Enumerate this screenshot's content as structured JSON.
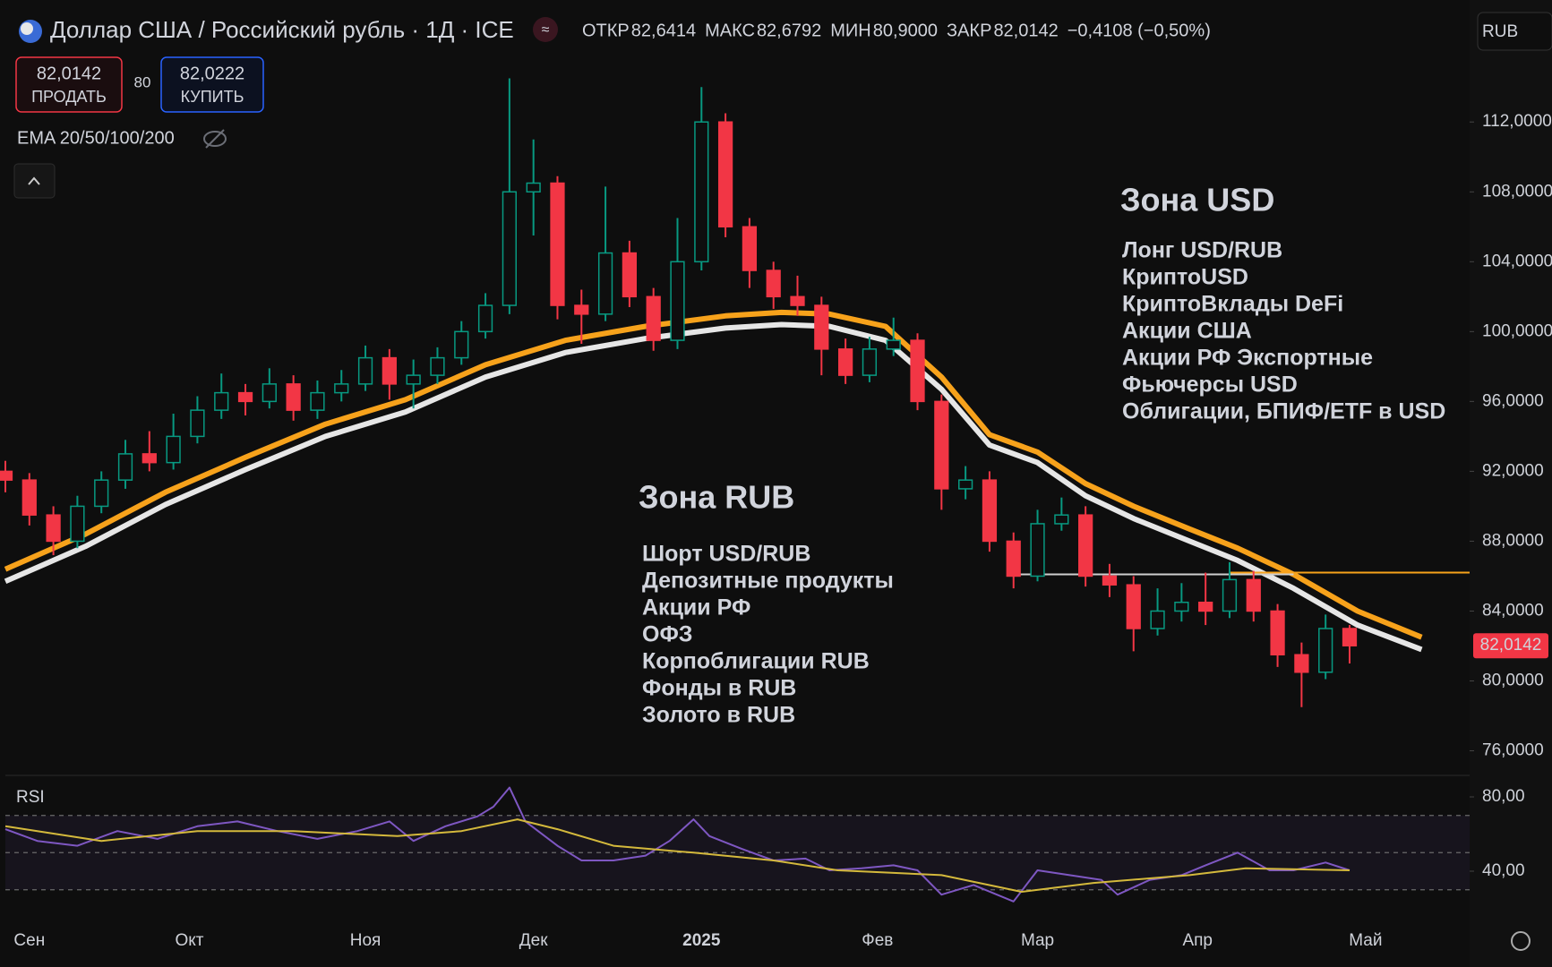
{
  "header": {
    "title": "Доллар США / Российский рубль · 1Д · ICE",
    "ohlc": [
      {
        "label": "ОТКР",
        "value": "82,6414"
      },
      {
        "label": "МАКС",
        "value": "82,6792"
      },
      {
        "label": "МИН",
        "value": "80,9000"
      },
      {
        "label": "ЗАКР",
        "value": "82,0142"
      }
    ],
    "change": "−0,4108 (−0,50%)",
    "sell": {
      "price": "82,0142",
      "label": "ПРОДАТЬ"
    },
    "spread": "80",
    "buy": {
      "price": "82,0222",
      "label": "КУПИТЬ"
    },
    "indicator": "EMA 20/50/100/200",
    "currency": "RUB"
  },
  "chart_data": [
    {
      "type": "candlestick",
      "x": [
        0,
        3,
        6,
        9,
        12,
        15,
        18,
        21,
        24,
        27,
        30,
        33,
        36,
        39,
        42,
        45,
        48,
        51,
        54,
        57,
        60,
        63,
        66,
        69,
        72,
        75,
        78,
        81,
        84,
        87,
        90,
        93,
        96,
        99,
        102,
        105,
        108,
        111,
        114,
        117,
        120,
        123,
        126,
        129,
        132,
        135,
        138,
        141,
        144,
        147,
        150,
        153,
        156,
        159,
        162,
        165,
        168
      ],
      "open": [
        92.0,
        91.5,
        89.5,
        88.0,
        90.0,
        91.5,
        93.0,
        92.5,
        94.0,
        95.5,
        96.5,
        96.0,
        97.0,
        95.5,
        96.5,
        97.0,
        98.5,
        97.0,
        97.5,
        98.5,
        100.0,
        101.5,
        108.0,
        108.5,
        101.5,
        101.0,
        104.5,
        102.0,
        99.5,
        104.0,
        112.0,
        106.0,
        103.5,
        102.0,
        101.5,
        99.0,
        97.5,
        99.0,
        99.5,
        96.0,
        91.0,
        91.5,
        88.0,
        86.0,
        89.0,
        89.5,
        86.0,
        85.5,
        83.0,
        84.0,
        84.5,
        84.0,
        85.8,
        84.0,
        81.5,
        80.5,
        83.0
      ],
      "high": [
        92.6,
        91.9,
        90.0,
        90.6,
        92.0,
        93.8,
        94.3,
        95.3,
        96.3,
        97.6,
        97.0,
        97.9,
        97.5,
        97.2,
        97.8,
        99.2,
        99.0,
        98.4,
        99.1,
        100.6,
        102.2,
        114.5,
        111.0,
        108.9,
        102.4,
        108.3,
        105.2,
        102.5,
        106.5,
        114.0,
        112.5,
        106.5,
        104.0,
        103.2,
        102.0,
        99.6,
        99.7,
        100.8,
        99.9,
        96.4,
        92.3,
        92.0,
        88.5,
        89.8,
        90.5,
        90.0,
        86.7,
        86.0,
        85.3,
        85.6,
        86.2,
        86.8,
        86.3,
        84.4,
        82.2,
        83.8,
        83.2
      ],
      "low": [
        90.8,
        88.9,
        87.2,
        87.6,
        89.6,
        91.0,
        92.0,
        92.1,
        93.6,
        95.0,
        95.2,
        95.6,
        94.9,
        95.0,
        96.0,
        96.6,
        96.1,
        95.6,
        97.0,
        98.1,
        99.6,
        101.0,
        105.5,
        100.7,
        99.3,
        100.6,
        101.4,
        98.9,
        99.0,
        103.5,
        105.4,
        102.5,
        101.3,
        100.9,
        97.5,
        97.0,
        97.1,
        98.6,
        95.5,
        89.8,
        90.4,
        87.4,
        85.3,
        85.7,
        88.6,
        85.4,
        84.8,
        81.7,
        82.6,
        83.4,
        83.2,
        83.6,
        83.4,
        80.8,
        78.5,
        80.1,
        81.0
      ],
      "close": [
        91.5,
        89.5,
        88.0,
        90.0,
        91.5,
        93.0,
        92.5,
        94.0,
        95.5,
        96.5,
        96.0,
        97.0,
        95.5,
        96.5,
        97.0,
        98.5,
        97.0,
        97.5,
        98.5,
        100.0,
        101.5,
        108.0,
        108.5,
        101.5,
        101.0,
        104.5,
        102.0,
        99.5,
        104.0,
        112.0,
        106.0,
        103.5,
        102.0,
        101.5,
        99.0,
        97.5,
        99.0,
        99.5,
        96.0,
        91.0,
        91.5,
        88.0,
        86.0,
        89.0,
        89.5,
        86.0,
        85.5,
        83.0,
        84.0,
        84.5,
        84.0,
        85.8,
        84.0,
        81.5,
        80.5,
        83.0,
        82.0142
      ],
      "up_color": "#089981",
      "down_color": "#f23645",
      "lines": [
        {
          "color": "#f7a21b",
          "x": [
            0,
            10,
            20,
            30,
            40,
            50,
            60,
            70,
            80,
            90,
            97,
            103,
            110,
            117,
            123,
            129,
            135,
            141,
            148,
            154,
            161,
            169,
            177
          ],
          "values": [
            86.4,
            88.4,
            90.8,
            92.8,
            94.7,
            96.1,
            98.1,
            99.5,
            100.3,
            100.9,
            101.1,
            101.0,
            100.3,
            97.4,
            94.1,
            93.1,
            91.3,
            90.0,
            88.7,
            87.6,
            86.1,
            84.0,
            82.5
          ]
        },
        {
          "color": "#e6e6e6",
          "x": [
            0,
            10,
            20,
            30,
            40,
            50,
            60,
            70,
            80,
            90,
            97,
            103,
            110,
            117,
            123,
            129,
            135,
            141,
            148,
            154,
            161,
            169,
            177
          ],
          "values": [
            85.7,
            87.7,
            90.1,
            92.1,
            94.0,
            95.4,
            97.4,
            98.8,
            99.6,
            100.2,
            100.4,
            100.3,
            99.5,
            96.7,
            93.5,
            92.5,
            90.6,
            89.3,
            88.0,
            86.9,
            85.3,
            83.2,
            81.8
          ]
        }
      ],
      "levels": [
        {
          "value": 86.2,
          "x": [
            153,
            183
          ],
          "color": "#f7a21b"
        },
        {
          "value": 86.1,
          "x": [
            126,
            161
          ],
          "color": "#cfcfcf"
        }
      ],
      "price_tag": "82,0142",
      "xlim": [
        0,
        183
      ],
      "ylim": [
        74.9,
        115.6
      ],
      "yticks": [
        {
          "value": 76,
          "label": "76,0000"
        },
        {
          "value": 80,
          "label": "80,0000"
        },
        {
          "value": 84,
          "label": "84,0000"
        },
        {
          "value": 88,
          "label": "88,0000"
        },
        {
          "value": 92,
          "label": "92,0000"
        },
        {
          "value": 96,
          "label": "96,0000"
        },
        {
          "value": 100,
          "label": "100,0000"
        },
        {
          "value": 104,
          "label": "104,0000"
        },
        {
          "value": 108,
          "label": "108,0000"
        },
        {
          "value": 112,
          "label": "112,0000"
        }
      ],
      "xticks": [
        {
          "value": 3,
          "label": "Сен"
        },
        {
          "value": 23,
          "label": "Окт"
        },
        {
          "value": 45,
          "label": "Ноя"
        },
        {
          "value": 66,
          "label": "Дек"
        },
        {
          "value": 87,
          "label": "2025"
        },
        {
          "value": 109,
          "label": "Фев"
        },
        {
          "value": 129,
          "label": "Мар"
        },
        {
          "value": 149,
          "label": "Апр"
        },
        {
          "value": 170,
          "label": "Май"
        }
      ],
      "annotations": [
        {
          "title": "Зона USD",
          "color": "#f7a21b",
          "items": [
            "Лонг USD/RUB",
            "КриптоUSD",
            "КриптоВклады DeFi",
            "Акции США",
            "Акции РФ Экспортные",
            "Фьючерсы USD",
            "Облигации, БПИФ/ETF в USD"
          ]
        },
        {
          "title": "Зона RUB",
          "color": "#d9d9d9",
          "items": [
            "Шорт USD/RUB",
            "Депозитные продукты",
            "Акции РФ",
            "ОФЗ",
            "Корпоблигации RUB",
            "Фонды в RUB",
            "Золото в RUB"
          ]
        }
      ]
    },
    {
      "type": "line",
      "title": "RSI",
      "series": [
        {
          "color": "#7e57c2",
          "x": [
            0,
            4,
            9,
            14,
            19,
            24,
            29,
            34,
            39,
            44,
            48,
            51,
            55,
            59,
            61,
            63,
            65,
            69,
            72,
            76,
            80,
            83,
            86,
            88,
            92,
            96,
            100,
            103,
            107,
            111,
            114,
            117,
            121,
            126,
            129,
            133,
            137,
            139,
            143,
            147,
            150,
            154,
            158,
            161,
            165,
            168
          ],
          "values": [
            62.6,
            56.3,
            53.7,
            61.6,
            57.4,
            64.2,
            66.8,
            61.6,
            57.4,
            61.6,
            66.8,
            56.3,
            64.2,
            69.5,
            74.7,
            85.0,
            66.8,
            53.7,
            45.8,
            45.8,
            48.4,
            56.3,
            67.9,
            58.9,
            52.1,
            45.8,
            46.8,
            40.5,
            41.6,
            43.2,
            40.5,
            27.4,
            32.6,
            23.7,
            40.5,
            37.9,
            35.3,
            27.4,
            35.3,
            37.9,
            43.2,
            50.0,
            40.5,
            40.5,
            44.7,
            40.5
          ]
        },
        {
          "color": "#d4b93c",
          "x": [
            0,
            12,
            24,
            36,
            49,
            57,
            64,
            69,
            76,
            86,
            96,
            104,
            117,
            127,
            136,
            148,
            155,
            168
          ],
          "values": [
            64.2,
            56.3,
            61.6,
            61.6,
            58.9,
            61.6,
            67.9,
            62.6,
            53.7,
            50.0,
            45.8,
            40.5,
            37.9,
            28.9,
            33.7,
            37.9,
            41.6,
            40.5
          ]
        }
      ],
      "bands": [
        30,
        50,
        70
      ],
      "xlim": [
        0,
        183
      ],
      "ylim": [
        13.5,
        88.2
      ],
      "yticks": [
        {
          "value": 40,
          "label": "40,00"
        },
        {
          "value": 80,
          "label": "80,00"
        }
      ]
    }
  ]
}
